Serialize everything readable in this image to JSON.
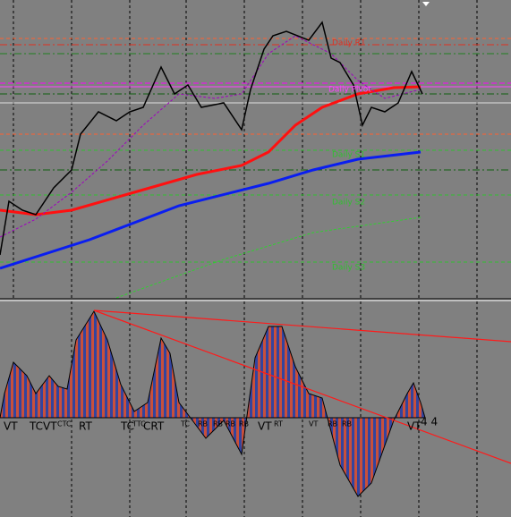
{
  "price_panel": {
    "levels": [
      "Daily R1",
      "Daily Pivot",
      "Daily S1",
      "Daily S2",
      "Daily S3"
    ]
  },
  "oscillator_panel": {
    "labels": [
      "VT",
      "TCVT",
      "CTC",
      "RT",
      "TC",
      "TTC",
      "CRT",
      "TC",
      "RB",
      "RB",
      "RB",
      "RB",
      "VT",
      "RT",
      "VT",
      "RB",
      "RB",
      "VT",
      "4 4"
    ]
  }
}
